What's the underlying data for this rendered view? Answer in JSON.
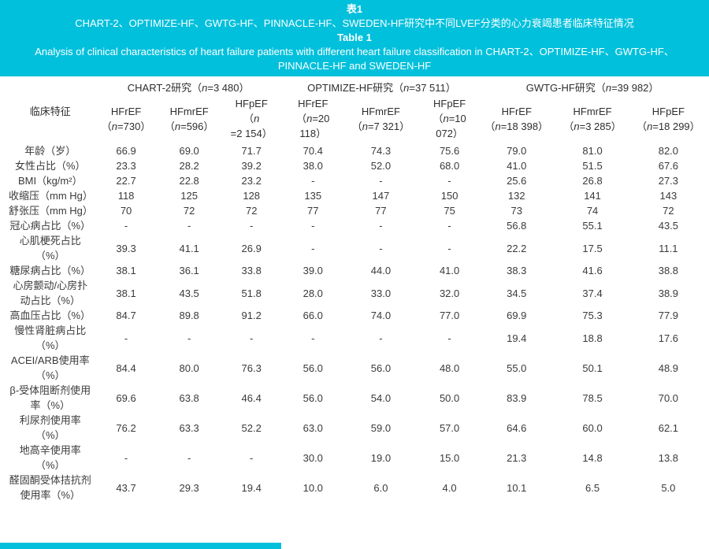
{
  "accent_color": "#00c0dc",
  "caption": {
    "label_cn": "表1",
    "title_cn": "CHART-2、OPTIMIZE-HF、GWTG-HF、PINNACLE-HF、SWEDEN-HF研究中不同LVEF分类的心力衰竭患者临床特征情况",
    "label_en": "Table 1",
    "title_en": "Analysis of clinical characteristics of heart failure patients with different heart failure classification in CHART-2、OPTIMIZE-HF、GWTG-HF、PINNACLE-HF and SWEDEN-HF"
  },
  "table": {
    "feature_header": "临床特征",
    "groups": [
      {
        "title": "CHART-2研究（n=3 480）",
        "cols": [
          {
            "ef": "HFrEF",
            "n": "（n=730）"
          },
          {
            "ef": "HFmrEF",
            "n": "（n=596）"
          },
          {
            "ef": "HFpEF",
            "n": "（n=2 154）"
          }
        ]
      },
      {
        "title": "OPTIMIZE-HF研究（n=37 511）",
        "cols": [
          {
            "ef": "HFrEF",
            "n": "（n=20 118）"
          },
          {
            "ef": "HFmrEF",
            "n": "（n=7 321）"
          },
          {
            "ef": "HFpEF",
            "n": "（n=10 072）"
          }
        ]
      },
      {
        "title": "GWTG-HF研究（n=39 982）",
        "cols": [
          {
            "ef": "HFrEF",
            "n": "（n=18 398）"
          },
          {
            "ef": "HFmrEF",
            "n": "（n=3 285）"
          },
          {
            "ef": "HFpEF",
            "n": "（n=18 299）"
          }
        ]
      }
    ],
    "rows": [
      {
        "label": "年龄（岁）",
        "values": [
          "66.9",
          "69.0",
          "71.7",
          "70.4",
          "74.3",
          "75.6",
          "79.0",
          "81.0",
          "82.0"
        ]
      },
      {
        "label": "女性占比（%）",
        "values": [
          "23.3",
          "28.2",
          "39.2",
          "38.0",
          "52.0",
          "68.0",
          "41.0",
          "51.5",
          "67.6"
        ]
      },
      {
        "label": "BMI（kg/m²）",
        "values": [
          "22.7",
          "22.8",
          "23.2",
          "-",
          "-",
          "-",
          "25.6",
          "26.8",
          "27.3"
        ]
      },
      {
        "label": "收缩压（mm Hg）",
        "values": [
          "118",
          "125",
          "128",
          "135",
          "147",
          "150",
          "132",
          "141",
          "143"
        ]
      },
      {
        "label": "舒张压（mm Hg）",
        "values": [
          "70",
          "72",
          "72",
          "77",
          "77",
          "75",
          "73",
          "74",
          "72"
        ]
      },
      {
        "label": "冠心病占比（%）",
        "values": [
          "-",
          "-",
          "-",
          "-",
          "-",
          "-",
          "56.8",
          "55.1",
          "43.5"
        ]
      },
      {
        "label": "心肌梗死占比（%）",
        "values": [
          "39.3",
          "41.1",
          "26.9",
          "-",
          "-",
          "-",
          "22.2",
          "17.5",
          "11.1"
        ]
      },
      {
        "label": "糖尿病占比（%）",
        "values": [
          "38.1",
          "36.1",
          "33.8",
          "39.0",
          "44.0",
          "41.0",
          "38.3",
          "41.6",
          "38.8"
        ]
      },
      {
        "label": "心房颤动/心房扑动占比（%）",
        "values": [
          "38.1",
          "43.5",
          "51.8",
          "28.0",
          "33.0",
          "32.0",
          "34.5",
          "37.4",
          "38.9"
        ]
      },
      {
        "label": "高血压占比（%）",
        "values": [
          "84.7",
          "89.8",
          "91.2",
          "66.0",
          "74.0",
          "77.0",
          "69.9",
          "75.3",
          "77.9"
        ]
      },
      {
        "label": "慢性肾脏病占比（%）",
        "values": [
          "-",
          "-",
          "-",
          "-",
          "-",
          "-",
          "19.4",
          "18.8",
          "17.6"
        ]
      },
      {
        "label": "ACEI/ARB使用率（%）",
        "values": [
          "84.4",
          "80.0",
          "76.3",
          "56.0",
          "56.0",
          "48.0",
          "55.0",
          "50.1",
          "48.9"
        ]
      },
      {
        "label": "β-受体阻断剂使用率（%）",
        "values": [
          "69.6",
          "63.8",
          "46.4",
          "56.0",
          "54.0",
          "50.0",
          "83.9",
          "78.5",
          "70.0"
        ]
      },
      {
        "label": "利尿剂使用率（%）",
        "values": [
          "76.2",
          "63.3",
          "52.2",
          "63.0",
          "59.0",
          "57.0",
          "64.6",
          "60.0",
          "62.1"
        ]
      },
      {
        "label": "地高辛使用率（%）",
        "values": [
          "-",
          "-",
          "-",
          "30.0",
          "19.0",
          "15.0",
          "21.3",
          "14.8",
          "13.8"
        ]
      },
      {
        "label": "醛固酮受体拮抗剂使用率（%）",
        "values": [
          "43.7",
          "29.3",
          "19.4",
          "10.0",
          "6.0",
          "4.0",
          "10.1",
          "6.5",
          "5.0"
        ]
      }
    ]
  }
}
